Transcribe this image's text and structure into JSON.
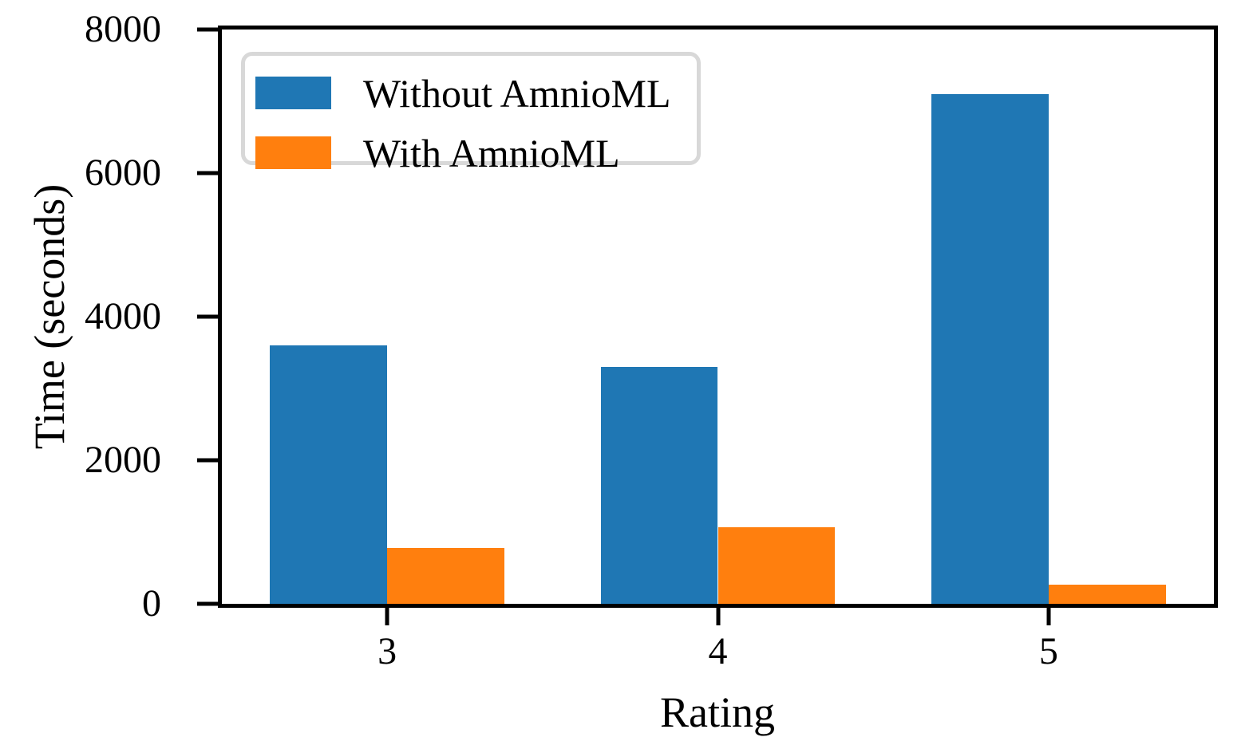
{
  "chart_data": {
    "type": "bar",
    "title": "",
    "xlabel": "Rating",
    "ylabel": "Time (seconds)",
    "categories": [
      "3",
      "4",
      "5"
    ],
    "series": [
      {
        "name": "Without AmnioML",
        "color": "#1f77b4",
        "values": [
          3600,
          3300,
          7100
        ]
      },
      {
        "name": "With AmnioML",
        "color": "#ff7f0e",
        "values": [
          780,
          1070,
          270
        ]
      }
    ],
    "ylim": [
      0,
      8000
    ],
    "yticks": [
      0,
      2000,
      4000,
      6000,
      8000
    ],
    "grid": false,
    "legend_position": "upper left",
    "axis_color": "#000000",
    "background_color": "#ffffff",
    "legend_border_color": "#d8d8d8"
  }
}
